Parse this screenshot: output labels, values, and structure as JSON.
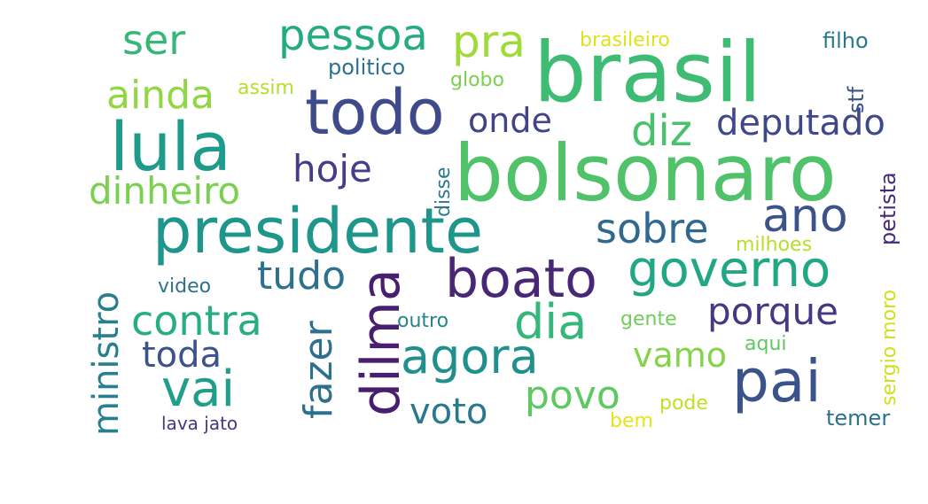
{
  "words": [
    {
      "text": "brasil",
      "color": "#3fbc73"
    },
    {
      "text": "bolsonaro",
      "color": "#4fc26a"
    },
    {
      "text": "lula",
      "color": "#1e9b8a"
    },
    {
      "text": "presidente",
      "color": "#1f968b"
    },
    {
      "text": "todo",
      "color": "#3e4a89"
    },
    {
      "text": "pai",
      "color": "#3b528b"
    },
    {
      "text": "boato",
      "color": "#482777"
    },
    {
      "text": "governo",
      "color": "#22a785"
    },
    {
      "text": "ano",
      "color": "#3b528b"
    },
    {
      "text": "dilma",
      "color": "#481f70"
    },
    {
      "text": "agora",
      "color": "#21908d"
    },
    {
      "text": "vai",
      "color": "#1f9e89"
    },
    {
      "text": "dia",
      "color": "#35b779"
    },
    {
      "text": "pessoa",
      "color": "#25ab82"
    },
    {
      "text": "pra",
      "color": "#a0da39"
    },
    {
      "text": "ser",
      "color": "#35b779"
    },
    {
      "text": "ainda",
      "color": "#90d743"
    },
    {
      "text": "diz",
      "color": "#4ac16d"
    },
    {
      "text": "deputado",
      "color": "#3e4989"
    },
    {
      "text": "onde",
      "color": "#414487"
    },
    {
      "text": "hoje",
      "color": "#433e85"
    },
    {
      "text": "dinheiro",
      "color": "#7ad151"
    },
    {
      "text": "sobre",
      "color": "#31688e"
    },
    {
      "text": "ministro",
      "color": "#27808e"
    },
    {
      "text": "contra",
      "color": "#26ad81"
    },
    {
      "text": "tudo",
      "color": "#2c728e"
    },
    {
      "text": "porque",
      "color": "#443a83"
    },
    {
      "text": "fazer",
      "color": "#2d708e"
    },
    {
      "text": "toda",
      "color": "#3b528b"
    },
    {
      "text": "vamo",
      "color": "#84d44b"
    },
    {
      "text": "povo",
      "color": "#5ec962"
    },
    {
      "text": "voto",
      "color": "#2a788e"
    },
    {
      "text": "politico",
      "color": "#2c728e"
    },
    {
      "text": "assim",
      "color": "#b5de2b"
    },
    {
      "text": "globo",
      "color": "#7ad151"
    },
    {
      "text": "brasileiro",
      "color": "#dde318"
    },
    {
      "text": "filho",
      "color": "#2a788e"
    },
    {
      "text": "stf",
      "color": "#3b528b"
    },
    {
      "text": "disse",
      "color": "#2a788e"
    },
    {
      "text": "petista",
      "color": "#482878"
    },
    {
      "text": "milhoes",
      "color": "#b8de29"
    },
    {
      "text": "video",
      "color": "#2c728e"
    },
    {
      "text": "outro",
      "color": "#25848e"
    },
    {
      "text": "gente",
      "color": "#6ece58"
    },
    {
      "text": "aqui",
      "color": "#5ec962"
    },
    {
      "text": "sergio moro",
      "color": "#d0e11c"
    },
    {
      "text": "pode",
      "color": "#c2df23"
    },
    {
      "text": "temer",
      "color": "#2c728e"
    },
    {
      "text": "bem",
      "color": "#e5e419"
    },
    {
      "text": "lava jato",
      "color": "#443983"
    }
  ]
}
